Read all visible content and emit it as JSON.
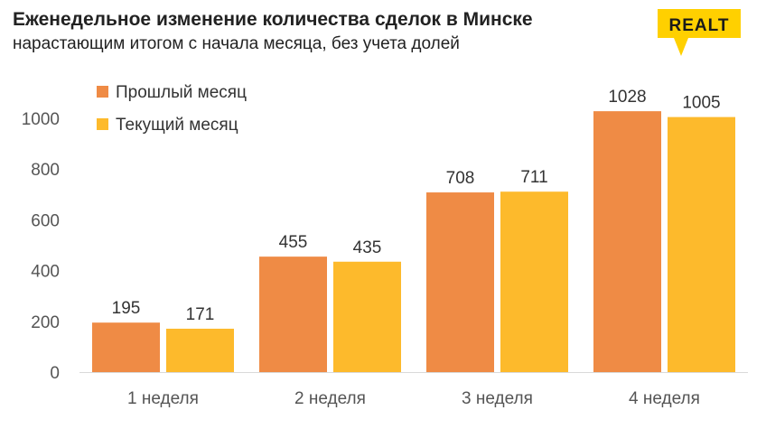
{
  "header": {
    "title": "Еженедельное изменение количества сделок в Минске",
    "subtitle": "нарастающим итогом с начала месяца, без учета долей"
  },
  "logo": {
    "text": "REALT",
    "color": "#FFD000"
  },
  "chart_data": {
    "type": "bar",
    "title": "Еженедельное изменение количества сделок в Минске",
    "subtitle": "нарастающим итогом с начала месяца, без учета долей",
    "categories": [
      "1 неделя",
      "2 неделя",
      "3 неделя",
      "4 неделя"
    ],
    "series": [
      {
        "name": "Прошлый месяц",
        "values": [
          195,
          455,
          708,
          1028
        ],
        "color": "#EF8B45"
      },
      {
        "name": "Текущий месяц",
        "values": [
          171,
          435,
          711,
          1005
        ],
        "color": "#FDBA2C"
      }
    ],
    "ylim": [
      0,
      1000
    ],
    "yticks": [
      0,
      200,
      400,
      600,
      800,
      1000
    ],
    "grid": false,
    "legend_position": "top-left",
    "data_labels": true,
    "colors": {
      "axis": "#D9D9D9",
      "text": "#333333",
      "tick": "#555555"
    }
  }
}
